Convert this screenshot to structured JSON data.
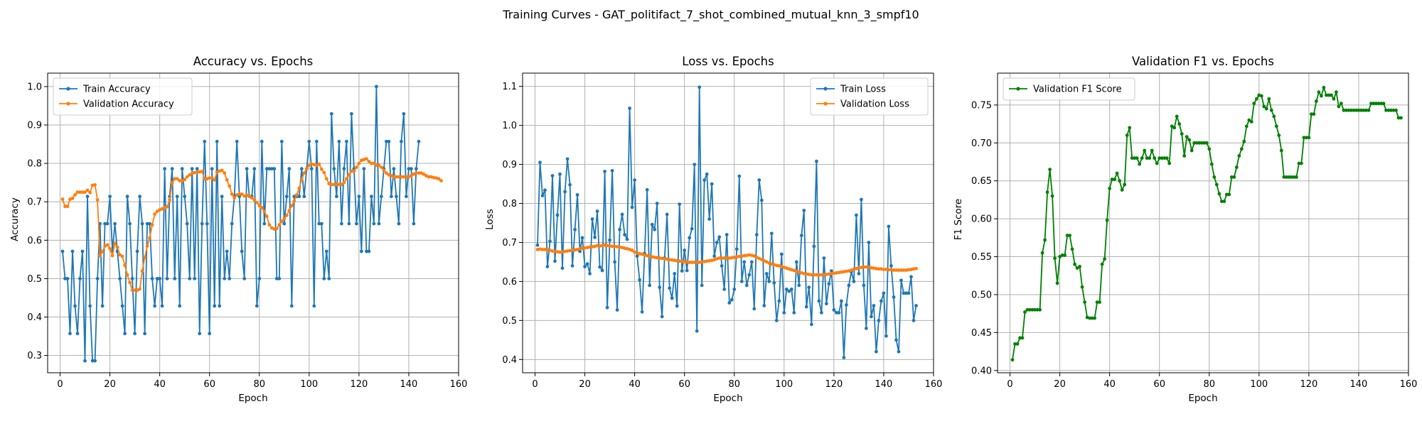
{
  "figure": {
    "suptitle": "Training Curves - GAT_politifact_7_shot_combined_mutual_knn_3_smpf10"
  },
  "chart_data": [
    {
      "type": "line",
      "title": "Accuracy vs. Epochs",
      "xlabel": "Epoch",
      "ylabel": "Accuracy",
      "xlim": [
        -5,
        160
      ],
      "ylim": [
        0.255,
        1.035
      ],
      "xticks": [
        0,
        20,
        40,
        60,
        80,
        100,
        120,
        140,
        160
      ],
      "yticks": [
        0.3,
        0.4,
        0.5,
        0.6,
        0.7,
        0.8,
        0.9,
        1.0
      ],
      "grid": true,
      "legend_position": "upper-left",
      "series": [
        {
          "name": "Train Accuracy",
          "color": "#1f77b4",
          "x_start": 1,
          "values": [
            0.571,
            0.5,
            0.5,
            0.357,
            0.571,
            0.429,
            0.357,
            0.5,
            0.571,
            0.286,
            0.714,
            0.429,
            0.286,
            0.286,
            0.5,
            0.643,
            0.429,
            0.643,
            0.643,
            0.714,
            0.571,
            0.643,
            0.571,
            0.5,
            0.429,
            0.357,
            0.714,
            0.643,
            0.5,
            0.357,
            0.571,
            0.714,
            0.643,
            0.357,
            0.643,
            0.643,
            0.5,
            0.429,
            0.5,
            0.5,
            0.429,
            0.786,
            0.5,
            0.714,
            0.786,
            0.5,
            0.714,
            0.429,
            0.786,
            0.714,
            0.643,
            0.5,
            0.786,
            0.5,
            0.786,
            0.357,
            0.643,
            0.857,
            0.643,
            0.357,
            0.786,
            0.429,
            0.857,
            0.429,
            0.714,
            0.5,
            0.571,
            0.5,
            0.643,
            0.714,
            0.857,
            0.714,
            0.571,
            0.5,
            0.786,
            0.714,
            0.714,
            0.786,
            0.429,
            0.5,
            0.857,
            0.643,
            0.786,
            0.786,
            0.786,
            0.786,
            0.5,
            0.5,
            0.857,
            0.643,
            0.714,
            0.786,
            0.429,
            0.714,
            0.714,
            0.714,
            0.786,
            0.714,
            0.786,
            0.857,
            0.786,
            0.429,
            0.857,
            0.643,
            0.643,
            0.5,
            0.571,
            0.5,
            0.929,
            0.786,
            0.714,
            0.857,
            0.643,
            0.786,
            0.857,
            0.643,
            0.929,
            0.786,
            0.643,
            0.714,
            0.571,
            0.786,
            0.571,
            0.571,
            0.714,
            0.643,
            1.0,
            0.643,
            0.714,
            0.786,
            0.857,
            0.857,
            0.714,
            0.786,
            0.714,
            0.643,
            0.857,
            0.929,
            0.714,
            0.786,
            0.786,
            0.643,
            0.786,
            0.857
          ]
        },
        {
          "name": "Validation Accuracy",
          "color": "#ff7f0e",
          "x_start": 1,
          "values": [
            0.707,
            0.688,
            0.688,
            0.707,
            0.709,
            0.718,
            0.725,
            0.725,
            0.725,
            0.725,
            0.73,
            0.724,
            0.743,
            0.744,
            0.705,
            0.56,
            0.57,
            0.585,
            0.588,
            0.578,
            0.56,
            0.592,
            0.582,
            0.562,
            0.558,
            0.535,
            0.51,
            0.49,
            0.47,
            0.47,
            0.47,
            0.473,
            0.52,
            0.555,
            0.585,
            0.606,
            0.64,
            0.668,
            0.675,
            0.679,
            0.682,
            0.685,
            0.687,
            0.705,
            0.75,
            0.76,
            0.76,
            0.755,
            0.755,
            0.758,
            0.765,
            0.77,
            0.774,
            0.776,
            0.777,
            0.778,
            0.779,
            0.76,
            0.76,
            0.762,
            0.762,
            0.757,
            0.777,
            0.78,
            0.782,
            0.775,
            0.757,
            0.741,
            0.72,
            0.71,
            0.718,
            0.72,
            0.72,
            0.715,
            0.717,
            0.714,
            0.71,
            0.705,
            0.698,
            0.69,
            0.685,
            0.675,
            0.662,
            0.64,
            0.632,
            0.629,
            0.63,
            0.64,
            0.649,
            0.656,
            0.665,
            0.677,
            0.69,
            0.702,
            0.718,
            0.735,
            0.758,
            0.775,
            0.786,
            0.795,
            0.798,
            0.797,
            0.795,
            0.798,
            0.785,
            0.776,
            0.76,
            0.747,
            0.745,
            0.745,
            0.745,
            0.745,
            0.745,
            0.75,
            0.76,
            0.77,
            0.78,
            0.78,
            0.79,
            0.8,
            0.808,
            0.81,
            0.812,
            0.805,
            0.8,
            0.8,
            0.795,
            0.795,
            0.79,
            0.782,
            0.775,
            0.77,
            0.768,
            0.765,
            0.765,
            0.765,
            0.765,
            0.765,
            0.765,
            0.765,
            0.768,
            0.772,
            0.775,
            0.775,
            0.775,
            0.772,
            0.768,
            0.765,
            0.765,
            0.763,
            0.762,
            0.76,
            0.755
          ]
        }
      ]
    },
    {
      "type": "line",
      "title": "Loss vs. Epochs",
      "xlabel": "Epoch",
      "ylabel": "Loss",
      "xlim": [
        -5,
        160
      ],
      "ylim": [
        0.366,
        1.134
      ],
      "xticks": [
        0,
        20,
        40,
        60,
        80,
        100,
        120,
        140,
        160
      ],
      "yticks": [
        0.4,
        0.5,
        0.6,
        0.7,
        0.8,
        0.9,
        1.0,
        1.1
      ],
      "grid": true,
      "legend_position": "upper-right",
      "series": [
        {
          "name": "Train Loss",
          "color": "#1f77b4",
          "x_start": 1,
          "values": [
            0.693,
            0.905,
            0.82,
            0.834,
            0.638,
            0.703,
            0.871,
            0.652,
            0.77,
            0.875,
            0.634,
            0.83,
            0.914,
            0.848,
            0.64,
            0.733,
            0.822,
            0.677,
            0.712,
            0.638,
            0.645,
            0.62,
            0.76,
            0.713,
            0.78,
            0.637,
            0.628,
            0.882,
            0.533,
            0.706,
            0.884,
            0.65,
            0.527,
            0.733,
            0.772,
            0.72,
            0.708,
            1.044,
            0.79,
            0.86,
            0.665,
            0.604,
            0.522,
            0.672,
            0.835,
            0.59,
            0.746,
            0.733,
            0.8,
            0.585,
            0.51,
            0.66,
            0.772,
            0.583,
            0.557,
            0.62,
            0.537,
            0.798,
            0.627,
            0.68,
            0.628,
            0.712,
            0.735,
            0.9,
            0.473,
            1.098,
            0.59,
            0.86,
            0.875,
            0.76,
            0.85,
            0.665,
            0.7,
            0.714,
            0.64,
            0.58,
            0.72,
            0.545,
            0.553,
            0.58,
            0.683,
            0.87,
            0.6,
            0.65,
            0.59,
            0.617,
            0.65,
            0.53,
            0.72,
            0.86,
            0.808,
            0.538,
            0.62,
            0.6,
            0.723,
            0.596,
            0.5,
            0.55,
            0.67,
            0.52,
            0.58,
            0.575,
            0.58,
            0.52,
            0.65,
            0.59,
            0.718,
            0.782,
            0.535,
            0.585,
            0.49,
            0.69,
            0.908,
            0.55,
            0.52,
            0.66,
            0.543,
            0.594,
            0.627,
            0.527,
            0.52,
            0.52,
            0.55,
            0.405,
            0.54,
            0.59,
            0.625,
            0.6,
            0.77,
            0.62,
            0.81,
            0.59,
            0.48,
            0.7,
            0.51,
            0.538,
            0.42,
            0.5,
            0.55,
            0.57,
            0.46,
            0.741,
            0.64,
            0.56,
            0.45,
            0.42,
            0.603,
            0.57,
            0.57,
            0.57,
            0.612,
            0.5,
            0.538
          ]
        },
        {
          "name": "Validation Loss",
          "color": "#ff7f0e",
          "x_start": 1,
          "values": [
            0.682,
            0.683,
            0.682,
            0.682,
            0.681,
            0.68,
            0.678,
            0.677,
            0.676,
            0.675,
            0.676,
            0.677,
            0.678,
            0.679,
            0.68,
            0.681,
            0.682,
            0.684,
            0.685,
            0.686,
            0.687,
            0.688,
            0.689,
            0.69,
            0.692,
            0.691,
            0.692,
            0.693,
            0.692,
            0.691,
            0.69,
            0.69,
            0.689,
            0.688,
            0.687,
            0.685,
            0.684,
            0.682,
            0.68,
            0.675,
            0.673,
            0.671,
            0.67,
            0.668,
            0.666,
            0.665,
            0.663,
            0.662,
            0.661,
            0.66,
            0.659,
            0.658,
            0.657,
            0.656,
            0.655,
            0.654,
            0.653,
            0.652,
            0.651,
            0.651,
            0.65,
            0.649,
            0.649,
            0.649,
            0.649,
            0.649,
            0.65,
            0.651,
            0.652,
            0.653,
            0.654,
            0.656,
            0.658,
            0.66,
            0.66,
            0.66,
            0.66,
            0.66,
            0.661,
            0.662,
            0.663,
            0.664,
            0.665,
            0.666,
            0.667,
            0.668,
            0.667,
            0.665,
            0.662,
            0.659,
            0.656,
            0.653,
            0.65,
            0.647,
            0.645,
            0.643,
            0.641,
            0.64,
            0.638,
            0.636,
            0.634,
            0.632,
            0.63,
            0.628,
            0.626,
            0.624,
            0.622,
            0.62,
            0.619,
            0.618,
            0.617,
            0.617,
            0.617,
            0.617,
            0.617,
            0.617,
            0.618,
            0.619,
            0.62,
            0.621,
            0.622,
            0.623,
            0.624,
            0.625,
            0.626,
            0.627,
            0.629,
            0.631,
            0.633,
            0.635,
            0.636,
            0.637,
            0.637,
            0.636,
            0.635,
            0.634,
            0.633,
            0.632,
            0.632,
            0.631,
            0.631,
            0.63,
            0.63,
            0.629,
            0.629,
            0.629,
            0.629,
            0.629,
            0.629,
            0.63,
            0.631,
            0.632,
            0.633
          ]
        }
      ]
    },
    {
      "type": "line",
      "title": "Validation F1 vs. Epochs",
      "xlabel": "Epoch",
      "ylabel": "F1 Score",
      "xlim": [
        -5,
        160
      ],
      "ylim": [
        0.397,
        0.792
      ],
      "xticks": [
        0,
        20,
        40,
        60,
        80,
        100,
        120,
        140,
        160
      ],
      "yticks": [
        0.4,
        0.45,
        0.5,
        0.55,
        0.6,
        0.65,
        0.7,
        0.75
      ],
      "grid": true,
      "legend_position": "upper-left",
      "series": [
        {
          "name": "Validation F1 Score",
          "color": "#008000",
          "x_start": 1,
          "values": [
            0.414,
            0.435,
            0.435,
            0.443,
            0.443,
            0.477,
            0.48,
            0.48,
            0.48,
            0.48,
            0.48,
            0.48,
            0.555,
            0.572,
            0.635,
            0.665,
            0.63,
            0.548,
            0.515,
            0.55,
            0.552,
            0.552,
            0.578,
            0.578,
            0.56,
            0.54,
            0.535,
            0.537,
            0.51,
            0.49,
            0.47,
            0.469,
            0.469,
            0.469,
            0.49,
            0.49,
            0.54,
            0.547,
            0.598,
            0.64,
            0.652,
            0.652,
            0.66,
            0.65,
            0.638,
            0.645,
            0.71,
            0.72,
            0.68,
            0.68,
            0.68,
            0.672,
            0.68,
            0.69,
            0.68,
            0.68,
            0.69,
            0.68,
            0.673,
            0.68,
            0.68,
            0.68,
            0.68,
            0.673,
            0.722,
            0.72,
            0.735,
            0.725,
            0.712,
            0.683,
            0.708,
            0.704,
            0.69,
            0.7,
            0.7,
            0.7,
            0.7,
            0.7,
            0.7,
            0.692,
            0.672,
            0.655,
            0.645,
            0.633,
            0.623,
            0.623,
            0.632,
            0.632,
            0.655,
            0.655,
            0.668,
            0.683,
            0.692,
            0.702,
            0.722,
            0.73,
            0.728,
            0.752,
            0.758,
            0.763,
            0.762,
            0.748,
            0.745,
            0.758,
            0.743,
            0.735,
            0.722,
            0.71,
            0.69,
            0.655,
            0.655,
            0.655,
            0.655,
            0.655,
            0.655,
            0.673,
            0.673,
            0.707,
            0.707,
            0.707,
            0.738,
            0.738,
            0.755,
            0.767,
            0.762,
            0.773,
            0.763,
            0.763,
            0.763,
            0.758,
            0.767,
            0.748,
            0.752,
            0.743,
            0.743,
            0.743,
            0.743,
            0.743,
            0.743,
            0.743,
            0.743,
            0.743,
            0.743,
            0.743,
            0.752,
            0.752,
            0.752,
            0.752,
            0.752,
            0.752,
            0.743,
            0.743,
            0.743,
            0.743,
            0.743,
            0.733,
            0.733
          ]
        }
      ]
    }
  ]
}
